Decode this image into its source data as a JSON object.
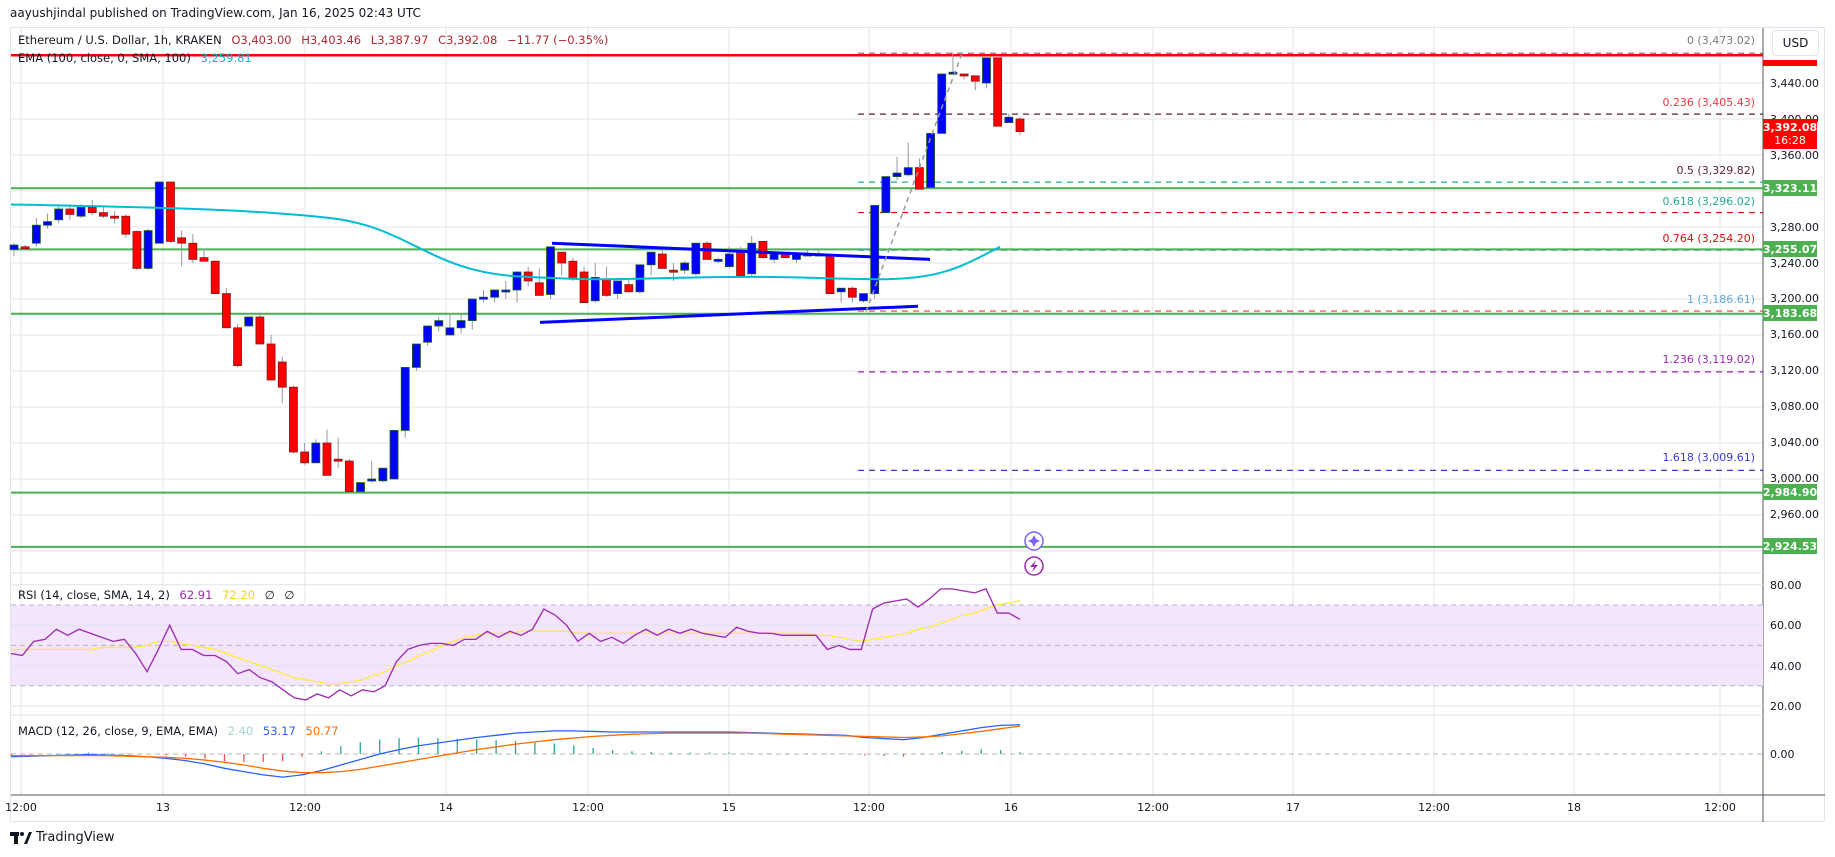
{
  "header": {
    "published": "aayushjindal published on TradingView.com, Jan 16, 2025 02:43 UTC"
  },
  "legend": {
    "symbol": "Ethereum / U.S. Dollar, 1h, KRAKEN",
    "open": "O3,403.00",
    "high": "H3,403.46",
    "low": "L3,387.97",
    "close": "C3,392.08",
    "change": "−11.77 (−0.35%)",
    "ema_label": "EMA (100, close, 0, SMA, 100)",
    "ema_value": "3,259.81"
  },
  "currency": "USD",
  "price_axis": [
    "3,440.00",
    "3,400.00",
    "3,360.00",
    "3,280.00",
    "3,240.00",
    "3,200.00",
    "3,160.00",
    "3,120.00",
    "3,080.00",
    "3,040.00",
    "3,000.00",
    "2,960.00"
  ],
  "price_tags": {
    "current_price": "3,392.08",
    "countdown": "16:28",
    "support_1": "3,323.11",
    "support_2": "3,255.07",
    "support_3": "3,183.68",
    "support_4": "2,984.90",
    "support_5": "2,924.53"
  },
  "fib_levels": [
    {
      "label": "0 (3,473.02)",
      "color": "#787b86"
    },
    {
      "label": "0.236 (3,405.43)",
      "color": "#f23645"
    },
    {
      "label": "0.5 (3,329.82)",
      "color": "#5d1f3a"
    },
    {
      "label": "0.618 (3,296.02)",
      "color": "#22ab94"
    },
    {
      "label": "0.764 (3,254.20)",
      "color": "#d80e0e"
    },
    {
      "label": "1 (3,186.61)",
      "color": "#5ca9e0"
    },
    {
      "label": "1.236 (3,119.02)",
      "color": "#9c27b0"
    },
    {
      "label": "1.618 (3,009.61)",
      "color": "#3d3ad6"
    }
  ],
  "rsi": {
    "label": "RSI (14, close, SMA, 14, 2)",
    "value": "62.91",
    "sma": "72.20",
    "extra1": "∅",
    "extra2": "∅",
    "axis": [
      "80.00",
      "60.00",
      "40.00",
      "20.00"
    ]
  },
  "macd": {
    "label": "MACD (12, 26, close, 9, EMA, EMA)",
    "hist": "2.40",
    "macd": "53.17",
    "signal": "50.77",
    "axis": [
      "0.00"
    ]
  },
  "time_axis": [
    "12:00",
    "13",
    "12:00",
    "14",
    "12:00",
    "15",
    "12:00",
    "16",
    "12:00",
    "17",
    "12:00",
    "18",
    "12:00"
  ],
  "footer": {
    "brand": "TradingView"
  },
  "colors": {
    "up": "#0000ff",
    "down": "#ff0000",
    "support": "#4caf50",
    "resistance": "#ff0000",
    "ema": "#00bcd4",
    "rsi": "#9c27b0",
    "rsi_sma": "#ffeb3b",
    "macd": "#2962ff",
    "signal": "#ff6d00"
  },
  "chart_data": {
    "type": "candlestick",
    "title": "Ethereum / U.S. Dollar, 1h, KRAKEN",
    "xlabel": "",
    "ylabel": "USD",
    "ylim": [
      2900,
      3480
    ],
    "x_ticks": [
      "12:00",
      "13",
      "12:00",
      "14",
      "12:00",
      "15",
      "12:00",
      "16",
      "12:00",
      "17",
      "12:00",
      "18",
      "12:00"
    ],
    "horizontal_lines": {
      "resistance": [
        3473.02
      ],
      "support": [
        3323.11,
        3255.07,
        3183.68,
        2984.9,
        2924.53
      ]
    },
    "fibonacci": {
      "0": 3473.02,
      "0.236": 3405.43,
      "0.5": 3329.82,
      "0.618": 3296.02,
      "0.764": 3254.2,
      "1": 3186.61,
      "1.236": 3119.02,
      "1.618": 3009.61
    },
    "ema100_last": 3259.81,
    "last_close": 3392.08,
    "rsi": {
      "value": 62.91,
      "sma": 72.2,
      "range": [
        0,
        100
      ],
      "band": [
        30,
        70
      ]
    },
    "macd": {
      "histogram": 2.4,
      "macd": 53.17,
      "signal": 50.77
    }
  }
}
